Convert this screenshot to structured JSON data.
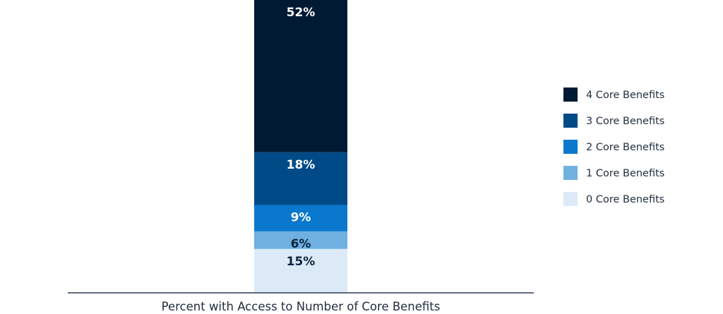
{
  "chart_data": {
    "type": "bar",
    "stacked": true,
    "xlabel": "Percent with Access to Number of Core Benefits",
    "ylim": [
      0,
      100
    ],
    "grid": false,
    "legend_position": "right",
    "series": [
      {
        "name": "0 Core Benefits",
        "values": [
          15
        ],
        "label": "15%",
        "color": "#dbeaf6",
        "label_color": "#0c2340"
      },
      {
        "name": "1 Core Benefits",
        "values": [
          6
        ],
        "label": "6%",
        "color": "#6fb0e0",
        "label_color": "#0c2340"
      },
      {
        "name": "2 Core Benefits",
        "values": [
          9
        ],
        "label": "9%",
        "color": "#0a78cc",
        "label_color": "#ffffff"
      },
      {
        "name": "3 Core Benefits",
        "values": [
          18
        ],
        "label": "18%",
        "color": "#004b87",
        "label_color": "#ffffff"
      },
      {
        "name": "4 Core Benefits",
        "values": [
          52
        ],
        "label": "52%",
        "color": "#001a33",
        "label_color": "#ffffff"
      }
    ],
    "legend_order": [
      "4 Core Benefits",
      "3 Core Benefits",
      "2 Core Benefits",
      "1 Core Benefits",
      "0 Core Benefits"
    ],
    "axis_color": "#2b3a55"
  }
}
